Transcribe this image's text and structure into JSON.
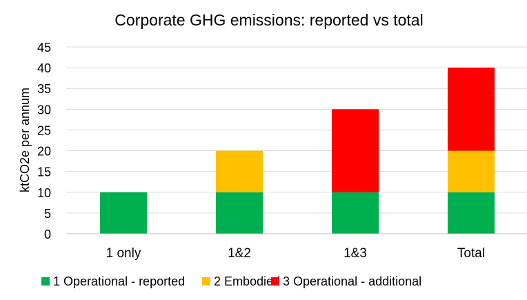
{
  "chart_data": {
    "type": "bar",
    "stacked": true,
    "title": "Corporate GHG emissions: reported vs total",
    "xlabel": "",
    "ylabel": "ktCO2e per annum",
    "categories": [
      "1 only",
      "1&2",
      "1&3",
      "Total"
    ],
    "series": [
      {
        "name": "1  Operational - reported",
        "color": "#00b050",
        "values": [
          10,
          10,
          10,
          10
        ]
      },
      {
        "name": "2  Embodied",
        "color": "#ffc000",
        "values": [
          0,
          10,
          0,
          10
        ]
      },
      {
        "name": "3  Operational - additional",
        "color": "#ff0000",
        "values": [
          0,
          0,
          20,
          20
        ]
      }
    ],
    "ylim": [
      0,
      45
    ],
    "yticks": [
      "0",
      "5",
      "10",
      "15",
      "20",
      "25",
      "30",
      "35",
      "40",
      "45"
    ],
    "grid": true,
    "legend": "bottom"
  }
}
